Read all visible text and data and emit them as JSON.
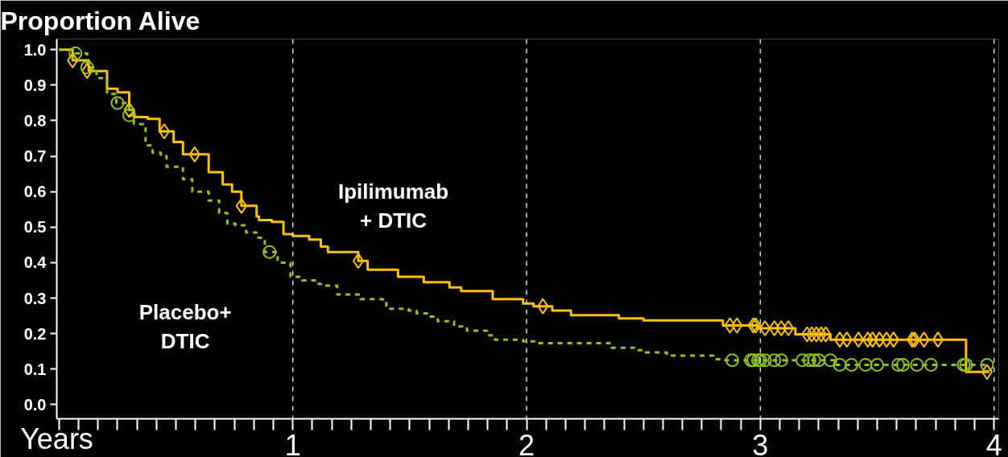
{
  "chart_data": {
    "type": "step",
    "title": "Proportion Alive",
    "xlabel": "Years",
    "annotations": [
      "Ipilimumab\n+ DTIC",
      "Placebo+\nDTIC"
    ],
    "xlim": [
      -0.01,
      4.02
    ],
    "ylim": [
      -0.04,
      1.03
    ],
    "xticks": [
      {
        "value": 0,
        "label": null
      },
      {
        "value": 0.0833,
        "label": null
      },
      {
        "value": 0.1667,
        "label": null
      },
      {
        "value": 0.25,
        "label": null
      },
      {
        "value": 0.3333,
        "label": null
      },
      {
        "value": 0.4167,
        "label": null
      },
      {
        "value": 0.5,
        "label": null
      },
      {
        "value": 0.5833,
        "label": null
      },
      {
        "value": 0.6667,
        "label": null
      },
      {
        "value": 0.75,
        "label": null
      },
      {
        "value": 0.8333,
        "label": null
      },
      {
        "value": 0.9167,
        "label": null
      },
      1,
      {
        "value": 1.0833,
        "label": null
      },
      {
        "value": 1.1667,
        "label": null
      },
      {
        "value": 1.25,
        "label": null
      },
      {
        "value": 1.3333,
        "label": null
      },
      {
        "value": 1.4167,
        "label": null
      },
      {
        "value": 1.5,
        "label": null
      },
      {
        "value": 1.5833,
        "label": null
      },
      {
        "value": 1.6667,
        "label": null
      },
      {
        "value": 1.75,
        "label": null
      },
      {
        "value": 1.8333,
        "label": null
      },
      {
        "value": 1.9167,
        "label": null
      },
      2,
      {
        "value": 2.0833,
        "label": null
      },
      {
        "value": 2.1667,
        "label": null
      },
      {
        "value": 2.25,
        "label": null
      },
      {
        "value": 2.3333,
        "label": null
      },
      {
        "value": 2.4167,
        "label": null
      },
      {
        "value": 2.5,
        "label": null
      },
      {
        "value": 2.5833,
        "label": null
      },
      {
        "value": 2.6667,
        "label": null
      },
      {
        "value": 2.75,
        "label": null
      },
      {
        "value": 2.8333,
        "label": null
      },
      {
        "value": 2.9167,
        "label": null
      },
      3,
      {
        "value": 3.0833,
        "label": null
      },
      {
        "value": 3.1667,
        "label": null
      },
      {
        "value": 3.25,
        "label": null
      },
      {
        "value": 3.3333,
        "label": null
      },
      {
        "value": 3.4167,
        "label": null
      },
      {
        "value": 3.5,
        "label": null
      },
      {
        "value": 3.5833,
        "label": null
      },
      {
        "value": 3.6667,
        "label": null
      },
      {
        "value": 3.75,
        "label": null
      },
      {
        "value": 3.8333,
        "label": null
      },
      {
        "value": 3.9167,
        "label": null
      },
      4
    ],
    "yticks": [
      {
        "value": 0,
        "label": "0.0"
      },
      0.1,
      0.2,
      0.3,
      0.4,
      0.5,
      0.6,
      0.7,
      0.8,
      0.9,
      {
        "value": 1,
        "label": "1.0"
      }
    ],
    "grid": false,
    "ref_lines": [
      {
        "axis": "x",
        "value": 1,
        "color": "#d9d9d9",
        "line_style": "dashed"
      },
      {
        "axis": "x",
        "value": 2,
        "color": "#d9d9d9",
        "line_style": "dashed"
      },
      {
        "axis": "x",
        "value": 3,
        "color": "#d9d9d9",
        "line_style": "dashed"
      },
      {
        "axis": "x",
        "value": 4,
        "color": "#d9d9d9",
        "line_style": "dashed"
      }
    ],
    "series": [
      {
        "color": "#ffc000",
        "line_style": "solid",
        "x": [
          0,
          0.058,
          0.127,
          0.205,
          0.25,
          0.3,
          0.32,
          0.38,
          0.43,
          0.49,
          0.53,
          0.64,
          0.7,
          0.74,
          0.78,
          0.845,
          0.855,
          0.91,
          0.96,
          1.0,
          1.07,
          1.12,
          1.15,
          1.28,
          1.32,
          1.45,
          1.56,
          1.67,
          1.72,
          1.855,
          1.985,
          2.03,
          2.11,
          2.19,
          2.395,
          2.5,
          2.84,
          2.99,
          3.15,
          3.3,
          3.88,
          3.98
        ],
        "values": [
          1.0,
          0.97,
          0.94,
          0.89,
          0.88,
          0.83,
          0.81,
          0.805,
          0.77,
          0.74,
          0.705,
          0.655,
          0.62,
          0.6,
          0.56,
          0.53,
          0.52,
          0.515,
          0.48,
          0.475,
          0.465,
          0.445,
          0.43,
          0.405,
          0.38,
          0.36,
          0.345,
          0.33,
          0.32,
          0.297,
          0.285,
          0.277,
          0.265,
          0.252,
          0.243,
          0.237,
          0.223,
          0.215,
          0.198,
          0.183,
          0.092,
          0.092
        ]
      },
      {
        "color": "#8dc21f",
        "line_style": "dashed",
        "x": [
          0,
          0.07,
          0.12,
          0.16,
          0.205,
          0.245,
          0.3,
          0.32,
          0.37,
          0.4,
          0.435,
          0.46,
          0.53,
          0.57,
          0.64,
          0.685,
          0.72,
          0.755,
          0.8,
          0.845,
          0.88,
          0.935,
          0.99,
          1.04,
          1.095,
          1.12,
          1.19,
          1.29,
          1.385,
          1.4,
          1.495,
          1.53,
          1.59,
          1.62,
          1.69,
          1.745,
          1.83,
          1.865,
          1.985,
          2.05,
          2.365,
          2.46,
          2.51,
          2.6,
          2.8,
          2.85,
          3.32,
          3.98
        ],
        "values": [
          1.0,
          0.99,
          0.95,
          0.92,
          0.875,
          0.85,
          0.815,
          0.79,
          0.73,
          0.71,
          0.7,
          0.67,
          0.635,
          0.6,
          0.575,
          0.54,
          0.51,
          0.505,
          0.485,
          0.47,
          0.43,
          0.4,
          0.36,
          0.35,
          0.34,
          0.335,
          0.31,
          0.297,
          0.29,
          0.27,
          0.265,
          0.257,
          0.248,
          0.235,
          0.22,
          0.208,
          0.195,
          0.183,
          0.178,
          0.173,
          0.16,
          0.153,
          0.147,
          0.138,
          0.128,
          0.125,
          0.112,
          0.112
        ]
      },
      {
        "type": "scatter",
        "marker": "diamond",
        "color": "#ffc000",
        "x": [
          0.058,
          0.12,
          0.3,
          0.45,
          0.58,
          0.78,
          1.28,
          2.07,
          2.87,
          2.9,
          2.97,
          2.98,
          3.02,
          3.06,
          3.09,
          3.12,
          3.2,
          3.22,
          3.24,
          3.26,
          3.28,
          3.34,
          3.37,
          3.42,
          3.46,
          3.48,
          3.51,
          3.54,
          3.57,
          3.65,
          3.66,
          3.7,
          3.76,
          3.97
        ],
        "values": [
          0.97,
          0.94,
          0.83,
          0.77,
          0.705,
          0.56,
          0.405,
          0.277,
          0.223,
          0.223,
          0.223,
          0.223,
          0.215,
          0.215,
          0.215,
          0.215,
          0.198,
          0.198,
          0.198,
          0.198,
          0.198,
          0.183,
          0.183,
          0.183,
          0.183,
          0.183,
          0.183,
          0.183,
          0.183,
          0.183,
          0.183,
          0.183,
          0.183,
          0.092
        ]
      },
      {
        "type": "scatter",
        "marker": "circle",
        "color": "#8dc21f",
        "x": [
          0.07,
          0.12,
          0.25,
          0.3,
          0.9,
          2.88,
          2.96,
          2.97,
          2.99,
          3.0,
          3.02,
          3.06,
          3.09,
          3.18,
          3.21,
          3.23,
          3.25,
          3.3,
          3.34,
          3.39,
          3.45,
          3.5,
          3.59,
          3.61,
          3.67,
          3.73,
          3.87,
          3.88,
          3.97
        ],
        "values": [
          0.99,
          0.95,
          0.85,
          0.815,
          0.43,
          0.125,
          0.125,
          0.125,
          0.125,
          0.125,
          0.125,
          0.125,
          0.125,
          0.125,
          0.125,
          0.125,
          0.125,
          0.125,
          0.112,
          0.112,
          0.112,
          0.112,
          0.112,
          0.112,
          0.112,
          0.112,
          0.112,
          0.112,
          0.112
        ]
      }
    ]
  }
}
